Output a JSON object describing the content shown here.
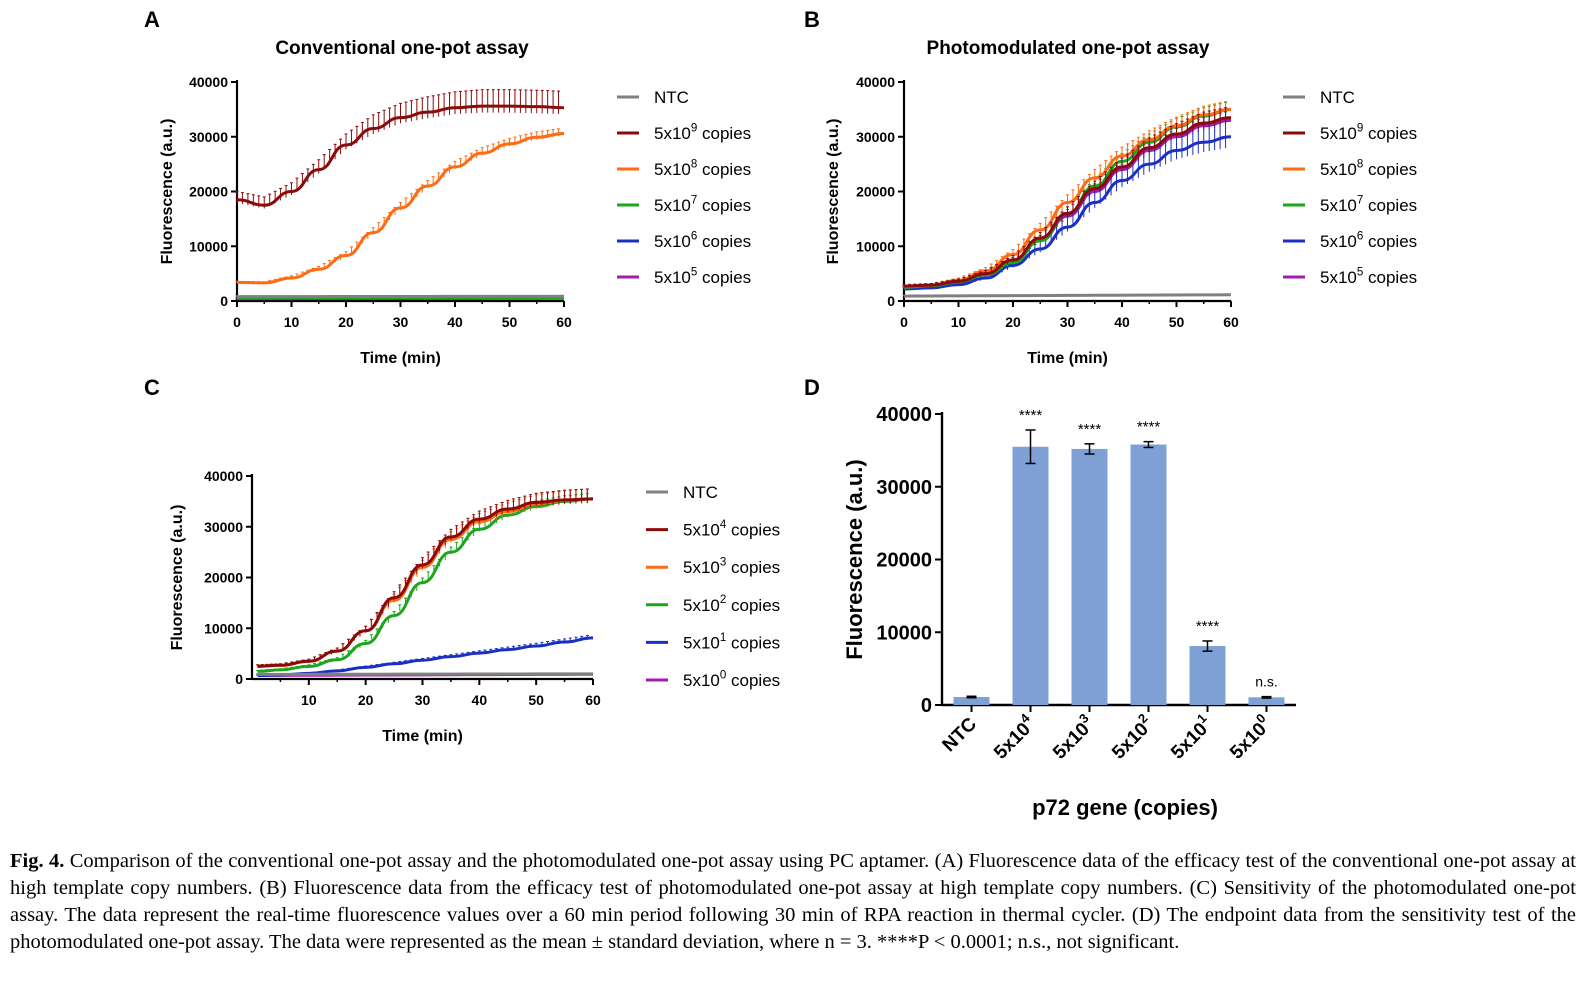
{
  "chart_data": [
    {
      "panel": "A",
      "type": "line",
      "title": "Conventional one-pot assay",
      "xlabel": "Time (min)",
      "ylabel": "Fluorescence (a.u.)",
      "xlim": [
        0,
        60
      ],
      "ylim": [
        0,
        40000
      ],
      "xticks": [
        "0",
        "10",
        "20",
        "30",
        "40",
        "50",
        "60"
      ],
      "yticks": [
        "0",
        "10000",
        "20000",
        "30000",
        "40000"
      ],
      "legend_position": "right",
      "error_bars": true,
      "x": [
        0,
        5,
        10,
        15,
        20,
        25,
        30,
        35,
        40,
        45,
        50,
        55,
        60
      ],
      "series": [
        {
          "name": "NTC",
          "mant": "",
          "exp": "",
          "color": "#808080",
          "values": [
            800,
            800,
            810,
            810,
            820,
            820,
            830,
            830,
            840,
            840,
            850,
            850,
            860
          ],
          "err": [
            150,
            150,
            150,
            150,
            150,
            150,
            150,
            150,
            150,
            150,
            150,
            150,
            150
          ]
        },
        {
          "name": "copies",
          "mant": "5x10",
          "exp": "9",
          "color": "#8b0a0a",
          "values": [
            18500,
            17500,
            20000,
            24000,
            28500,
            31500,
            33500,
            34500,
            35300,
            35600,
            35600,
            35500,
            35300
          ],
          "err": [
            1500,
            1500,
            1600,
            1800,
            2000,
            2500,
            2600,
            2800,
            2900,
            3000,
            3000,
            3000,
            3000
          ]
        },
        {
          "name": "copies",
          "mant": "5x10",
          "exp": "8",
          "color": "#ff6a13",
          "values": [
            3400,
            3300,
            4200,
            5800,
            8300,
            12500,
            17000,
            21000,
            24500,
            27000,
            28700,
            29900,
            30600
          ],
          "err": [
            200,
            200,
            400,
            500,
            700,
            900,
            1000,
            1000,
            1000,
            1000,
            1000,
            1000,
            1000
          ]
        },
        {
          "name": "copies",
          "mant": "5x10",
          "exp": "7",
          "color": "#1ea51e",
          "values": [
            500,
            510,
            520,
            530,
            540,
            550,
            560,
            570,
            580,
            590,
            600,
            610,
            620
          ],
          "err": [
            80,
            80,
            80,
            80,
            80,
            80,
            80,
            80,
            80,
            80,
            80,
            80,
            80
          ]
        },
        {
          "name": "copies",
          "mant": "5x10",
          "exp": "6",
          "color": "#1c2fc4",
          "values": [
            450,
            460,
            470,
            480,
            490,
            500,
            510,
            520,
            530,
            540,
            550,
            560,
            570
          ],
          "err": [
            80,
            80,
            80,
            80,
            80,
            80,
            80,
            80,
            80,
            80,
            80,
            80,
            80
          ]
        },
        {
          "name": "copies",
          "mant": "5x10",
          "exp": "5",
          "color": "#a21caf",
          "values": [
            400,
            410,
            420,
            430,
            440,
            450,
            460,
            470,
            480,
            490,
            500,
            510,
            520
          ],
          "err": [
            80,
            80,
            80,
            80,
            80,
            80,
            80,
            80,
            80,
            80,
            80,
            80,
            80
          ]
        }
      ]
    },
    {
      "panel": "B",
      "type": "line",
      "title": "Photomodulated one-pot assay",
      "xlabel": "Time (min)",
      "ylabel": "Fluorescence (a.u.)",
      "xlim": [
        0,
        60
      ],
      "ylim": [
        0,
        40000
      ],
      "xticks": [
        "0",
        "10",
        "20",
        "30",
        "40",
        "50",
        "60"
      ],
      "yticks": [
        "0",
        "10000",
        "20000",
        "30000",
        "40000"
      ],
      "legend_position": "right",
      "error_bars": true,
      "x": [
        0,
        5,
        10,
        15,
        20,
        25,
        30,
        35,
        40,
        45,
        50,
        55,
        60
      ],
      "series": [
        {
          "name": "NTC",
          "mant": "",
          "exp": "",
          "color": "#808080",
          "values": [
            900,
            920,
            940,
            960,
            980,
            1000,
            1020,
            1040,
            1060,
            1080,
            1100,
            1120,
            1140
          ],
          "err": [
            150,
            150,
            150,
            150,
            150,
            150,
            150,
            150,
            150,
            150,
            150,
            150,
            150
          ]
        },
        {
          "name": "copies",
          "mant": "5x10",
          "exp": "9",
          "color": "#8b0a0a",
          "values": [
            2700,
            2900,
            3600,
            5000,
            7500,
            11500,
            16000,
            20500,
            24500,
            28000,
            30500,
            32500,
            33500
          ],
          "err": [
            300,
            300,
            400,
            600,
            800,
            1000,
            1200,
            1400,
            1600,
            1800,
            1900,
            2000,
            2000
          ]
        },
        {
          "name": "copies",
          "mant": "5x10",
          "exp": "8",
          "color": "#ff6a13",
          "values": [
            2600,
            2900,
            3800,
            5500,
            8500,
            13000,
            18000,
            22500,
            26500,
            29500,
            32000,
            34000,
            35000
          ],
          "err": [
            300,
            300,
            400,
            600,
            900,
            1200,
            1400,
            1500,
            1600,
            1600,
            1600,
            1600,
            1600
          ]
        },
        {
          "name": "copies",
          "mant": "5x10",
          "exp": "7",
          "color": "#1ea51e",
          "values": [
            2500,
            2800,
            3500,
            4800,
            7000,
            11000,
            16000,
            21000,
            25500,
            29000,
            31800,
            33800,
            35000
          ],
          "err": [
            300,
            300,
            400,
            600,
            800,
            1000,
            1200,
            1300,
            1400,
            1500,
            1500,
            1500,
            1500
          ]
        },
        {
          "name": "copies",
          "mant": "5x10",
          "exp": "6",
          "color": "#1c2fc4",
          "values": [
            2200,
            2400,
            3000,
            4200,
            6500,
            9500,
            13500,
            18000,
            22000,
            25000,
            27500,
            29000,
            30000
          ],
          "err": [
            400,
            400,
            500,
            700,
            1000,
            1500,
            2000,
            2500,
            3000,
            3500,
            4000,
            4500,
            4800
          ]
        },
        {
          "name": "copies",
          "mant": "5x10",
          "exp": "5",
          "color": "#a21caf",
          "values": [
            2600,
            2800,
            3500,
            4800,
            7200,
            11000,
            15500,
            20000,
            24000,
            27500,
            30000,
            32000,
            33000
          ],
          "err": [
            300,
            300,
            400,
            600,
            800,
            1000,
            1200,
            1400,
            1600,
            1800,
            1900,
            2000,
            2000
          ]
        }
      ]
    },
    {
      "panel": "C",
      "type": "line",
      "title": "",
      "xlabel": "Time (min)",
      "ylabel": "Fluorescence (a.u.)",
      "xlim": [
        0,
        60
      ],
      "ylim": [
        0,
        40000
      ],
      "xticks": [
        "10",
        "20",
        "30",
        "40",
        "50",
        "60"
      ],
      "yticks": [
        "0",
        "10000",
        "20000",
        "30000",
        "40000"
      ],
      "legend_position": "right",
      "error_bars": true,
      "x": [
        1,
        5,
        10,
        15,
        20,
        25,
        30,
        35,
        40,
        45,
        50,
        55,
        60
      ],
      "series": [
        {
          "name": "NTC",
          "mant": "",
          "exp": "",
          "color": "#808080",
          "values": [
            900,
            910,
            920,
            930,
            940,
            950,
            960,
            970,
            980,
            990,
            1000,
            1010,
            1020
          ],
          "err": [
            150,
            150,
            150,
            150,
            150,
            150,
            150,
            150,
            150,
            150,
            150,
            150,
            150
          ]
        },
        {
          "name": "copies",
          "mant": "5x10",
          "exp": "4",
          "color": "#8b0a0a",
          "values": [
            2500,
            2700,
            3500,
            5500,
            9500,
            16000,
            22500,
            28000,
            31500,
            33500,
            34800,
            35300,
            35500
          ],
          "err": [
            300,
            300,
            400,
            600,
            900,
            1200,
            1400,
            1500,
            1600,
            1700,
            1800,
            1900,
            2000
          ]
        },
        {
          "name": "copies",
          "mant": "5x10",
          "exp": "3",
          "color": "#ff6a13",
          "values": [
            2500,
            2700,
            3500,
            5500,
            9500,
            15500,
            22000,
            27500,
            31000,
            33000,
            34500,
            35200,
            35500
          ],
          "err": [
            300,
            300,
            400,
            600,
            900,
            1200,
            1400,
            1500,
            1600,
            1700,
            1800,
            1900,
            2000
          ]
        },
        {
          "name": "copies",
          "mant": "5x10",
          "exp": "2",
          "color": "#1ea51e",
          "values": [
            1500,
            1800,
            2500,
            3800,
            7000,
            12500,
            19000,
            25000,
            29500,
            32300,
            34000,
            35000,
            35500
          ],
          "err": [
            200,
            200,
            300,
            400,
            600,
            800,
            900,
            1000,
            1100,
            1100,
            1100,
            1100,
            1100
          ]
        },
        {
          "name": "copies",
          "mant": "5x10",
          "exp": "1",
          "color": "#1c2fc4",
          "values": [
            700,
            800,
            1100,
            1600,
            2300,
            3000,
            3700,
            4400,
            5100,
            5800,
            6500,
            7300,
            8100
          ],
          "err": [
            100,
            100,
            150,
            200,
            250,
            300,
            350,
            400,
            450,
            500,
            550,
            600,
            650
          ]
        },
        {
          "name": "copies",
          "mant": "5x10",
          "exp": "0",
          "color": "#a21caf",
          "values": [
            700,
            720,
            740,
            760,
            780,
            800,
            820,
            840,
            860,
            880,
            900,
            920,
            940
          ],
          "err": [
            100,
            100,
            100,
            100,
            100,
            100,
            100,
            100,
            100,
            100,
            100,
            100,
            100
          ]
        }
      ]
    },
    {
      "panel": "D",
      "type": "bar",
      "title": "",
      "xlabel": "p72 gene (copies)",
      "ylabel": "Fluorescence (a.u.)",
      "ylim": [
        0,
        40000
      ],
      "yticks": [
        "0",
        "10000",
        "20000",
        "30000",
        "40000"
      ],
      "bar_color": "#7ea0d4",
      "categories": [
        {
          "label": "NTC",
          "mant": "",
          "exp": ""
        },
        {
          "label": "",
          "mant": "5x10",
          "exp": "4"
        },
        {
          "label": "",
          "mant": "5x10",
          "exp": "3"
        },
        {
          "label": "",
          "mant": "5x10",
          "exp": "2"
        },
        {
          "label": "",
          "mant": "5x10",
          "exp": "1"
        },
        {
          "label": "",
          "mant": "5x10",
          "exp": "0"
        }
      ],
      "values": [
        1100,
        35500,
        35200,
        35800,
        8100,
        1050
      ],
      "errors": [
        100,
        2300,
        700,
        400,
        700,
        100
      ],
      "annotations": [
        "",
        "****",
        "****",
        "****",
        "****",
        "n.s."
      ]
    }
  ],
  "panel_labels": [
    "A",
    "B",
    "C",
    "D"
  ],
  "caption": {
    "label": "Fig. 4.",
    "text": " Comparison of the conventional one-pot assay and the photomodulated one-pot assay using PC aptamer. (A) Fluorescence data of the efficacy test of the conventional one-pot assay at high template copy numbers. (B) Fluorescence data from the efficacy test of photomodulated one-pot assay at high template copy numbers. (C) Sensitivity of the photomodulated one-pot assay. The data represent the real-time fluorescence values over a 60 min period following 30 min of RPA reaction in thermal cycler. (D) The endpoint data from the sensitivity test of the photomodulated one-pot assay. The data were represented as the mean ± standard deviation, where n = 3. ****P < 0.0001; n.s., not significant."
  }
}
